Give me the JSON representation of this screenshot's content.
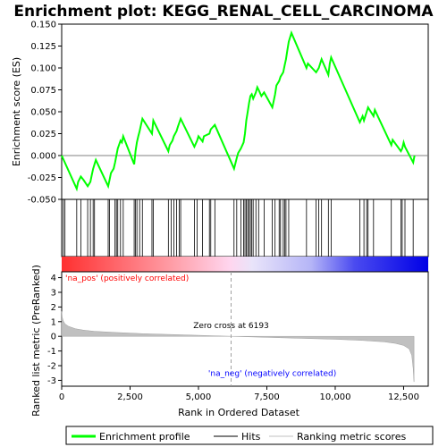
{
  "chart_data": {
    "type": "line",
    "title": "Enrichment plot: KEGG_RENAL_CELL_CARCINOMA",
    "top_panel": {
      "ylabel": "Enrichment score (ES)",
      "ylim": [
        -0.05,
        0.15
      ],
      "yticks": [
        "-0.050",
        "-0.025",
        "0.000",
        "0.025",
        "0.050",
        "0.075",
        "0.100",
        "0.125",
        "0.150"
      ],
      "ytick_values": [
        -0.05,
        -0.025,
        0.0,
        0.025,
        0.05,
        0.075,
        0.1,
        0.125,
        0.15
      ],
      "series": [
        {
          "name": "Enrichment profile",
          "color": "#00ff00",
          "x": [
            0,
            550,
            600,
            700,
            800,
            950,
            1050,
            1100,
            1150,
            1200,
            1250,
            1700,
            1750,
            1800,
            1900,
            1950,
            2000,
            2050,
            2150,
            2200,
            2250,
            2650,
            2700,
            2750,
            2800,
            2850,
            2900,
            2950,
            3300,
            3350,
            3900,
            3950,
            4050,
            4100,
            4200,
            4250,
            4350,
            4850,
            4950,
            5000,
            5150,
            5200,
            5400,
            5450,
            5600,
            6300,
            6400,
            6450,
            6550,
            6650,
            6700,
            6750,
            6800,
            6850,
            6900,
            6950,
            7000,
            7100,
            7150,
            7200,
            7300,
            7400,
            7700,
            7750,
            7800,
            7850,
            7950,
            8000,
            8100,
            8150,
            8200,
            8250,
            8300,
            8400,
            8950,
            9000,
            9300,
            9400,
            9500,
            9750,
            9800,
            9850,
            10900,
            11000,
            11050,
            11150,
            11200,
            11400,
            11450,
            12050,
            12100,
            12400,
            12450,
            12500,
            12550,
            12850,
            12900
          ],
          "y": [
            0.0,
            -0.038,
            -0.03,
            -0.024,
            -0.028,
            -0.035,
            -0.03,
            -0.022,
            -0.015,
            -0.01,
            -0.005,
            -0.035,
            -0.028,
            -0.02,
            -0.015,
            -0.008,
            0.0,
            0.008,
            0.017,
            0.015,
            0.022,
            -0.01,
            0.005,
            0.015,
            0.022,
            0.028,
            0.035,
            0.042,
            0.025,
            0.04,
            0.005,
            0.012,
            0.017,
            0.022,
            0.028,
            0.033,
            0.042,
            0.01,
            0.017,
            0.022,
            0.016,
            0.022,
            0.025,
            0.03,
            0.035,
            -0.015,
            -0.003,
            0.003,
            0.008,
            0.015,
            0.025,
            0.04,
            0.05,
            0.06,
            0.068,
            0.07,
            0.065,
            0.072,
            0.078,
            0.075,
            0.068,
            0.072,
            0.055,
            0.062,
            0.07,
            0.08,
            0.085,
            0.09,
            0.095,
            0.103,
            0.11,
            0.12,
            0.13,
            0.14,
            0.1,
            0.105,
            0.095,
            0.1,
            0.11,
            0.092,
            0.105,
            0.112,
            0.038,
            0.045,
            0.04,
            0.05,
            0.055,
            0.045,
            0.052,
            0.012,
            0.018,
            0.005,
            0.008,
            0.015,
            0.01,
            -0.008,
            0.0
          ]
        }
      ]
    },
    "hits_panel": {
      "name": "Hits",
      "hit_positions": [
        60,
        120,
        550,
        700,
        950,
        1050,
        1150,
        1200,
        1700,
        1750,
        1950,
        2000,
        2050,
        2150,
        2250,
        2650,
        2700,
        2750,
        2850,
        2950,
        3300,
        3350,
        3900,
        4000,
        4100,
        4200,
        4300,
        4350,
        4850,
        4950,
        5150,
        5400,
        5450,
        5600,
        6300,
        6400,
        6550,
        6650,
        6700,
        6750,
        6800,
        6850,
        6900,
        6950,
        7000,
        7100,
        7200,
        7400,
        7700,
        7800,
        7950,
        8000,
        8100,
        8150,
        8200,
        8300,
        8950,
        9300,
        9400,
        9500,
        9750,
        9850,
        10900,
        11050,
        11150,
        11200,
        11400,
        12050,
        12400,
        12450,
        12550,
        12850
      ]
    },
    "ranking_panel": {
      "name": "Ranking metric scores",
      "ylabel": "Ranked list metric (PreRanked)",
      "ylim": [
        -3.4,
        4.4
      ],
      "yticks": [
        "-3",
        "-2",
        "-1",
        "0",
        "1",
        "2",
        "3",
        "4"
      ],
      "ytick_values": [
        -3,
        -2,
        -1,
        0,
        1,
        2,
        3,
        4
      ],
      "x": [
        0,
        20,
        60,
        120,
        250,
        500,
        800,
        1200,
        2000,
        3000,
        4500,
        6193,
        8000,
        10000,
        11000,
        11800,
        12200,
        12500,
        12700,
        12800,
        12850,
        12880
      ],
      "y": [
        1.7,
        1.3,
        1.05,
        0.85,
        0.68,
        0.52,
        0.42,
        0.34,
        0.26,
        0.18,
        0.1,
        0.0,
        -0.1,
        -0.2,
        -0.28,
        -0.38,
        -0.48,
        -0.62,
        -0.85,
        -1.3,
        -2.2,
        -3.1
      ],
      "zero_cross_label": "Zero cross at 6193",
      "zero_cross_x": 6193,
      "pos_label": "'na_pos' (positively correlated)",
      "neg_label": "'na_neg' (negatively correlated)",
      "color": "#c0c0c0"
    },
    "xlabel": "Rank in Ordered Dataset",
    "xlim": [
      0,
      13400
    ],
    "xticks": [
      "0",
      "2,500",
      "5,000",
      "7,500",
      "10,000",
      "12,500"
    ],
    "xtick_values": [
      0,
      2500,
      5000,
      7500,
      10000,
      12500
    ],
    "legend": [
      "Enrichment profile",
      "Hits",
      "Ranking metric scores"
    ],
    "legend_position": "bottom",
    "colors": {
      "profile": "#00ff00",
      "hits": "#000000",
      "ranking": "#c0c0c0",
      "positive": "#ff0000",
      "negative": "#0000ff",
      "pos_label": "#ff0000",
      "neg_label": "#0000ff"
    }
  }
}
